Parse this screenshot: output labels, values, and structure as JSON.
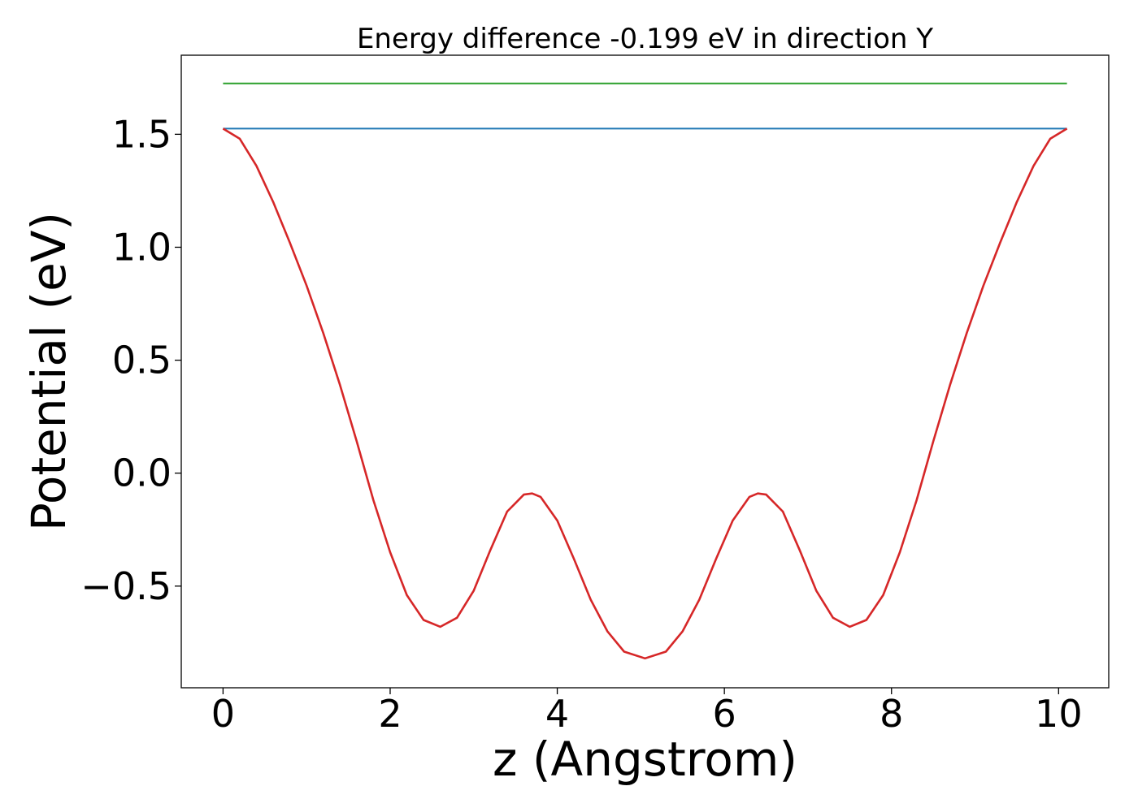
{
  "chart_data": {
    "type": "line",
    "title": "Energy difference -0.199 eV in direction Y",
    "xlabel": "z (Angstrom)",
    "ylabel": "Potential (eV)",
    "xlim": [
      -0.5,
      10.6
    ],
    "ylim": [
      -0.95,
      1.85
    ],
    "xticks": [
      0,
      2,
      4,
      6,
      8,
      10
    ],
    "xtick_labels": [
      "0",
      "2",
      "4",
      "6",
      "8",
      "10"
    ],
    "yticks": [
      -0.5,
      0.0,
      0.5,
      1.0,
      1.5
    ],
    "ytick_labels": [
      "−0.5",
      "0.0",
      "0.5",
      "1.0",
      "1.5"
    ],
    "grid": false,
    "legend": "none",
    "series": [
      {
        "color": "#1f77b4",
        "x": [
          0,
          10.1
        ],
        "y": [
          1.525,
          1.525
        ]
      },
      {
        "color": "#2ca02c",
        "x": [
          0,
          10.1
        ],
        "y": [
          1.725,
          1.725
        ]
      },
      {
        "color": "#d62728",
        "x": [
          0,
          0.2,
          0.4,
          0.6,
          0.8,
          1.0,
          1.2,
          1.4,
          1.6,
          1.8,
          2.0,
          2.2,
          2.4,
          2.6,
          2.8,
          3.0,
          3.2,
          3.4,
          3.6,
          3.7,
          3.8,
          4.0,
          4.2,
          4.4,
          4.6,
          4.8,
          5.05,
          5.3,
          5.5,
          5.7,
          5.9,
          6.1,
          6.3,
          6.4,
          6.5,
          6.7,
          6.9,
          7.1,
          7.3,
          7.5,
          7.7,
          7.9,
          8.1,
          8.3,
          8.5,
          8.7,
          8.9,
          9.1,
          9.3,
          9.5,
          9.7,
          9.9,
          10.1
        ],
        "y": [
          1.525,
          1.48,
          1.36,
          1.2,
          1.02,
          0.83,
          0.62,
          0.39,
          0.14,
          -0.12,
          -0.35,
          -0.54,
          -0.65,
          -0.68,
          -0.64,
          -0.52,
          -0.34,
          -0.17,
          -0.095,
          -0.09,
          -0.105,
          -0.21,
          -0.38,
          -0.56,
          -0.7,
          -0.79,
          -0.82,
          -0.79,
          -0.7,
          -0.56,
          -0.38,
          -0.21,
          -0.105,
          -0.09,
          -0.095,
          -0.17,
          -0.34,
          -0.52,
          -0.64,
          -0.68,
          -0.65,
          -0.54,
          -0.35,
          -0.12,
          0.14,
          0.39,
          0.62,
          0.83,
          1.02,
          1.2,
          1.36,
          1.48,
          1.525
        ]
      }
    ]
  }
}
